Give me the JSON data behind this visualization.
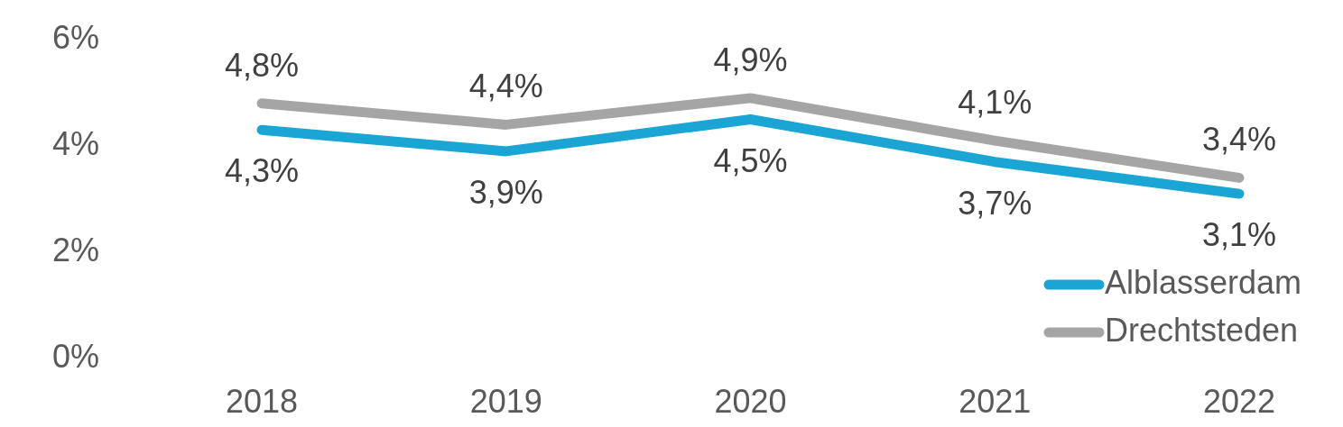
{
  "chart_data": {
    "type": "line",
    "categories": [
      "2018",
      "2019",
      "2020",
      "2021",
      "2022"
    ],
    "ylim": [
      0,
      6
    ],
    "yticks": [
      {
        "value": 0,
        "label": "0%"
      },
      {
        "value": 2,
        "label": "2%"
      },
      {
        "value": 4,
        "label": "4%"
      },
      {
        "value": 6,
        "label": "6%"
      }
    ],
    "legend": "bottom right",
    "series": [
      {
        "name": "Alblasserdam",
        "color": "#1ba5d5",
        "values": [
          4.3,
          3.9,
          4.5,
          3.7,
          3.1
        ],
        "value_labels": [
          "4,3%",
          "3,9%",
          "4,5%",
          "3,7%",
          "3,1%"
        ]
      },
      {
        "name": "Drechtsteden",
        "color": "#a5a5a5",
        "values": [
          4.8,
          4.4,
          4.9,
          4.1,
          3.4
        ],
        "value_labels": [
          "4,8%",
          "4,4%",
          "4,9%",
          "4,1%",
          "3,4%"
        ]
      }
    ]
  }
}
